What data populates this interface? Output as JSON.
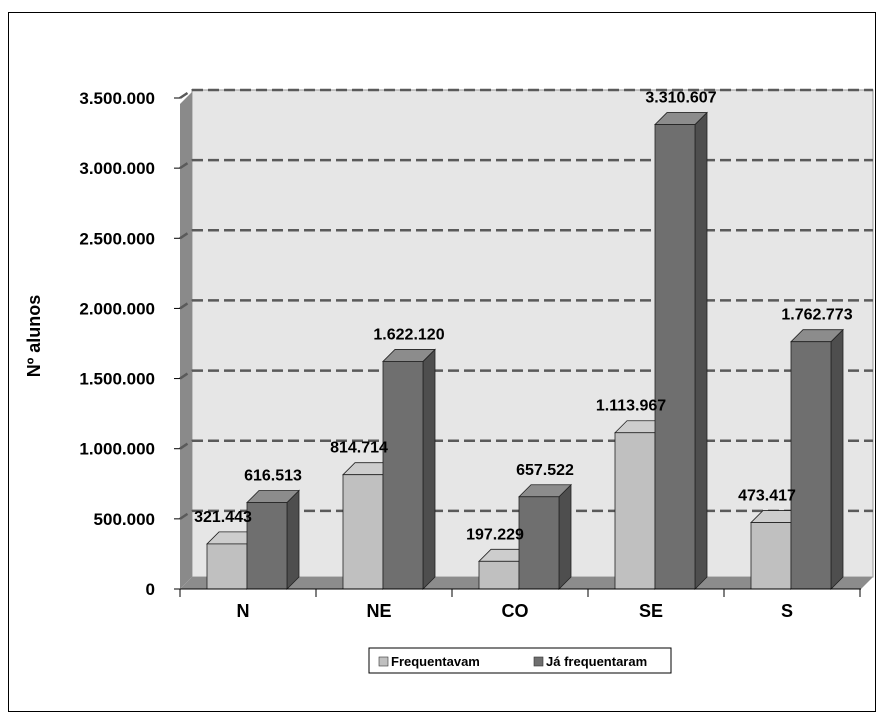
{
  "chart_data": {
    "type": "bar",
    "categories": [
      "N",
      "NE",
      "CO",
      "SE",
      "S"
    ],
    "series": [
      {
        "name": "Frequentavam",
        "values": [
          321443,
          814714,
          197229,
          1113967,
          473417
        ],
        "labels": [
          "321.443",
          "814.714",
          "197.229",
          "1.113.967",
          "473.417"
        ],
        "color": "#c0c0c0"
      },
      {
        "name": "Já frequentaram",
        "values": [
          616513,
          1622120,
          657522,
          3310607,
          1762773
        ],
        "labels": [
          "616.513",
          "1.622.120",
          "657.522",
          "3.310.607",
          "1.762.773"
        ],
        "color": "#6f6f6f"
      }
    ],
    "ylabel": "Nº alunos",
    "xlabel": "",
    "ylim": [
      0,
      3500000
    ],
    "yticks": [
      0,
      500000,
      1000000,
      1500000,
      2000000,
      2500000,
      3000000,
      3500000
    ],
    "ytick_labels": [
      "0",
      "500.000",
      "1.000.000",
      "1.500.000",
      "2.000.000",
      "2.500.000",
      "3.000.000",
      "3.500.000"
    ],
    "grid": true,
    "legend_position": "bottom",
    "style": "3d-clustered-column",
    "colors": {
      "plot_background": "#e6e6e6",
      "grid": "#5a5a5a",
      "wall_side": "#8a8a8a",
      "floor": "#8c8c8c"
    }
  }
}
